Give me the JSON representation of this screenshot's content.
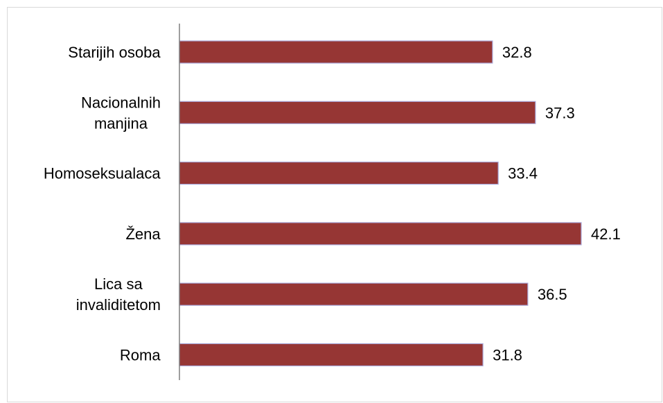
{
  "chart_data": {
    "type": "bar",
    "orientation": "horizontal",
    "categories": [
      "Starijih osoba",
      "Nacionalnih manjina",
      "Homoseksualaca",
      "Žena",
      "Lica sa invaliditetom",
      "Roma"
    ],
    "category_lines": [
      [
        "Starijih osoba"
      ],
      [
        "Nacionalnih",
        "manjina"
      ],
      [
        "Homoseksualaca"
      ],
      [
        "Žena"
      ],
      [
        "Lica sa",
        "invaliditetom"
      ],
      [
        "Roma"
      ]
    ],
    "values": [
      32.8,
      37.3,
      33.4,
      42.1,
      36.5,
      31.8
    ],
    "value_labels": [
      "32.8",
      "37.3",
      "33.4",
      "42.1",
      "36.5",
      "31.8"
    ],
    "title": "",
    "xlabel": "",
    "ylabel": "",
    "xlim": [
      0,
      42.1
    ],
    "grid": false,
    "legend": "none",
    "bar_color": "#963634",
    "bar_border_color": "#a9a7d8",
    "axis_color": "#7f7f7f"
  }
}
